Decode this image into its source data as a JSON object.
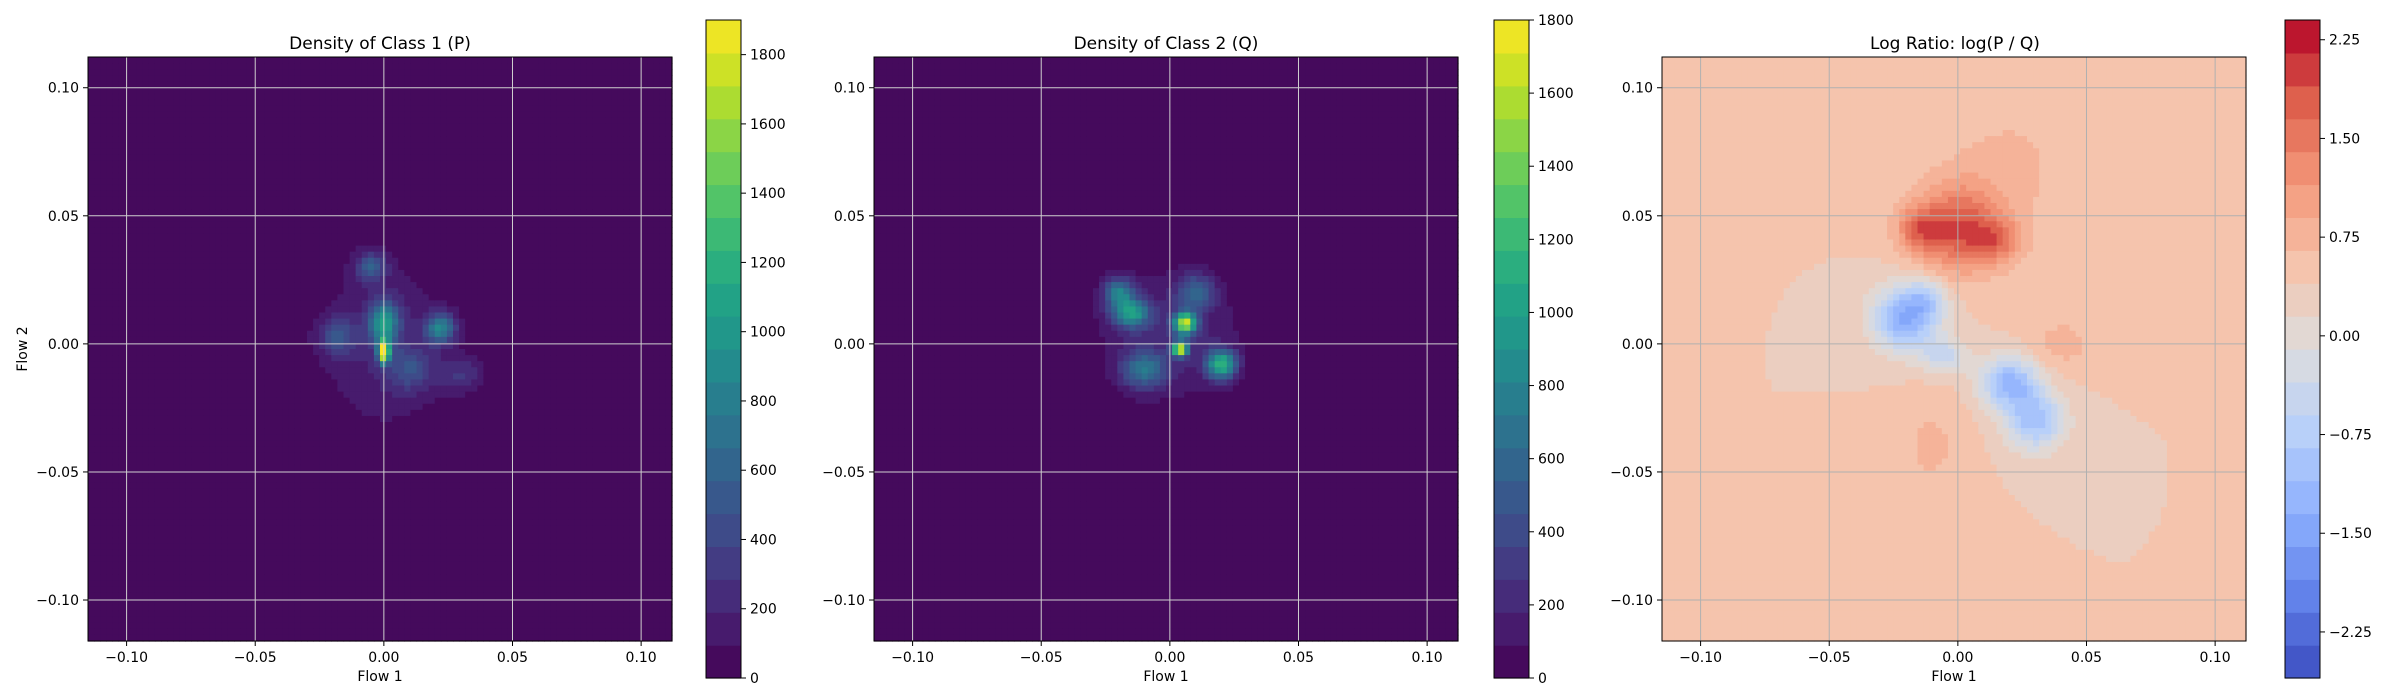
{
  "chart_data": [
    {
      "type": "heatmap",
      "title": "Density of Class 1 (P)",
      "xlabel": "Flow 1",
      "ylabel": "Flow 2",
      "xlim": [
        -0.115,
        0.112
      ],
      "ylim": [
        -0.116,
        0.112
      ],
      "xticks": [
        "−0.10",
        "−0.05",
        "0.00",
        "0.05",
        "0.10"
      ],
      "yticks": [
        "−0.10",
        "−0.05",
        "0.00",
        "0.05",
        "0.10"
      ],
      "grid": true,
      "colormap": "viridis",
      "colorbar": {
        "min": 0,
        "max": 1900,
        "ticks": [
          "0",
          "200",
          "400",
          "600",
          "800",
          "1000",
          "1200",
          "1400",
          "1600",
          "1800"
        ]
      },
      "background_value": 0,
      "blobs": [
        {
          "x": 0.0,
          "y": 0.0,
          "sx": 0.018,
          "sy": 0.024,
          "v": 200
        },
        {
          "x": 0.0,
          "y": -0.003,
          "sx": 0.0015,
          "sy": 0.003,
          "v": 1900
        },
        {
          "x": 0.0,
          "y": 0.008,
          "sx": 0.004,
          "sy": 0.006,
          "v": 900
        },
        {
          "x": 0.022,
          "y": 0.006,
          "sx": 0.004,
          "sy": 0.004,
          "v": 800
        },
        {
          "x": -0.005,
          "y": 0.03,
          "sx": 0.004,
          "sy": 0.004,
          "v": 500
        },
        {
          "x": -0.018,
          "y": 0.003,
          "sx": 0.005,
          "sy": 0.005,
          "v": 400
        },
        {
          "x": 0.01,
          "y": -0.01,
          "sx": 0.006,
          "sy": 0.006,
          "v": 350
        },
        {
          "x": 0.03,
          "y": -0.012,
          "sx": 0.006,
          "sy": 0.005,
          "v": 250
        }
      ]
    },
    {
      "type": "heatmap",
      "title": "Density of Class 2 (Q)",
      "xlabel": "Flow 1",
      "ylabel": "",
      "xlim": [
        -0.115,
        0.112
      ],
      "ylim": [
        -0.116,
        0.112
      ],
      "xticks": [
        "−0.10",
        "−0.05",
        "0.00",
        "0.05",
        "0.10"
      ],
      "yticks": [
        "−0.10",
        "−0.05",
        "0.00",
        "0.05",
        "0.10"
      ],
      "grid": true,
      "colormap": "viridis",
      "colorbar": {
        "min": 0,
        "max": 1800,
        "ticks": [
          "0",
          "200",
          "400",
          "600",
          "800",
          "1000",
          "1200",
          "1400",
          "1600",
          "1800"
        ]
      },
      "background_value": 0,
      "blobs": [
        {
          "x": 0.0,
          "y": 0.003,
          "sx": 0.02,
          "sy": 0.018,
          "v": 200
        },
        {
          "x": 0.006,
          "y": 0.008,
          "sx": 0.003,
          "sy": 0.003,
          "v": 1500
        },
        {
          "x": 0.004,
          "y": -0.002,
          "sx": 0.002,
          "sy": 0.002,
          "v": 1700
        },
        {
          "x": -0.015,
          "y": 0.012,
          "sx": 0.005,
          "sy": 0.004,
          "v": 900
        },
        {
          "x": 0.02,
          "y": -0.008,
          "sx": 0.004,
          "sy": 0.004,
          "v": 1100
        },
        {
          "x": -0.01,
          "y": -0.01,
          "sx": 0.006,
          "sy": 0.005,
          "v": 600
        },
        {
          "x": -0.02,
          "y": 0.02,
          "sx": 0.004,
          "sy": 0.004,
          "v": 700
        },
        {
          "x": 0.01,
          "y": 0.02,
          "sx": 0.005,
          "sy": 0.005,
          "v": 500
        }
      ]
    },
    {
      "type": "heatmap",
      "title": "Log Ratio: log(P / Q)",
      "xlabel": "Flow 1",
      "ylabel": "",
      "xlim": [
        -0.115,
        0.112
      ],
      "ylim": [
        -0.116,
        0.112
      ],
      "xticks": [
        "−0.10",
        "−0.05",
        "0.00",
        "0.05",
        "0.10"
      ],
      "yticks": [
        "−0.10",
        "−0.05",
        "0.00",
        "0.05",
        "0.10"
      ],
      "grid": true,
      "colormap": "coolwarm",
      "colorbar": {
        "min": -2.6,
        "max": 2.4,
        "ticks": [
          "−2.25",
          "−1.50",
          "−0.75",
          "0.00",
          "0.75",
          "1.50",
          "2.25"
        ]
      },
      "background_value": 0.4,
      "blobs": [
        {
          "x": 0.0,
          "y": 0.045,
          "sx": 0.012,
          "sy": 0.012,
          "v": 1.4
        },
        {
          "x": -0.015,
          "y": 0.045,
          "sx": 0.006,
          "sy": 0.006,
          "v": 0.9
        },
        {
          "x": 0.015,
          "y": 0.04,
          "sx": 0.007,
          "sy": 0.006,
          "v": 0.8
        },
        {
          "x": 0.02,
          "y": 0.07,
          "sx": 0.02,
          "sy": 0.02,
          "v": 0.3
        },
        {
          "x": -0.02,
          "y": 0.01,
          "sx": 0.009,
          "sy": 0.009,
          "v": -1.8
        },
        {
          "x": -0.005,
          "y": -0.005,
          "sx": 0.006,
          "sy": 0.005,
          "v": -0.8
        },
        {
          "x": 0.02,
          "y": -0.015,
          "sx": 0.008,
          "sy": 0.007,
          "v": -1.6
        },
        {
          "x": 0.03,
          "y": -0.03,
          "sx": 0.008,
          "sy": 0.008,
          "v": -1.4
        },
        {
          "x": -0.012,
          "y": 0.018,
          "sx": 0.005,
          "sy": 0.005,
          "v": -0.7
        },
        {
          "x": -0.01,
          "y": -0.04,
          "sx": 0.01,
          "sy": 0.015,
          "v": 0.3
        },
        {
          "x": 0.04,
          "y": 0.0,
          "sx": 0.01,
          "sy": 0.008,
          "v": 0.35
        }
      ]
    }
  ]
}
